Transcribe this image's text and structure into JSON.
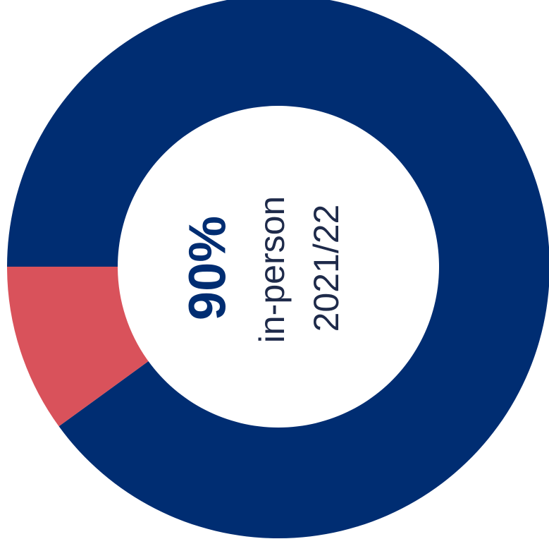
{
  "chart_data": {
    "type": "donut",
    "categories": [
      "in-person",
      null
    ],
    "values": [
      90,
      10
    ],
    "value_labels": [
      "90%",
      null
    ],
    "colors": [
      "#002d72",
      "#d9525b"
    ],
    "subtitle": "2021/22"
  }
}
